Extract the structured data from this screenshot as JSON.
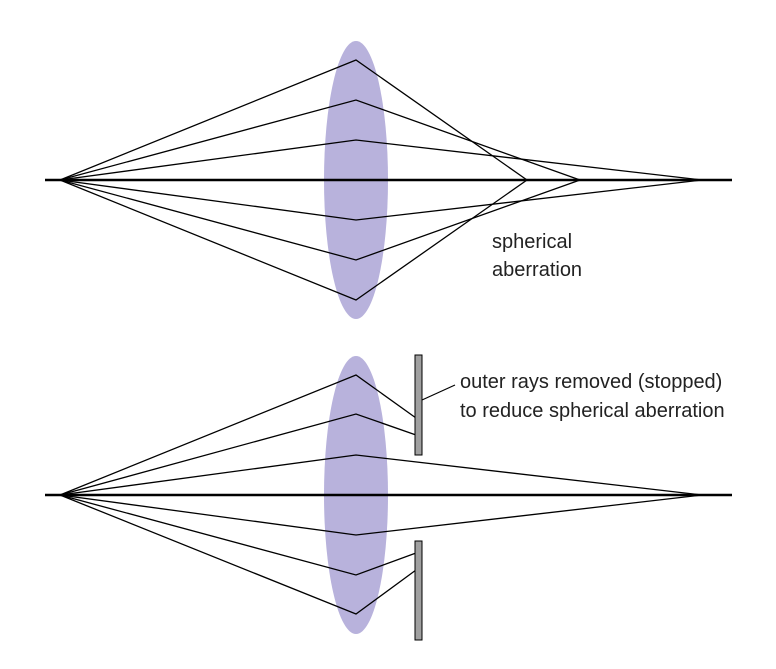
{
  "colors": {
    "lens_fill": "#b8b2dc",
    "ray_stroke": "#000000",
    "stop_fill": "#a0a0a0",
    "stop_stroke": "#000000"
  },
  "panels": {
    "top": {
      "label_line1": "spherical",
      "label_line2": "aberration"
    },
    "bottom": {
      "label_line1": "outer rays removed (stopped)",
      "label_line2": "to reduce spherical aberration"
    }
  }
}
